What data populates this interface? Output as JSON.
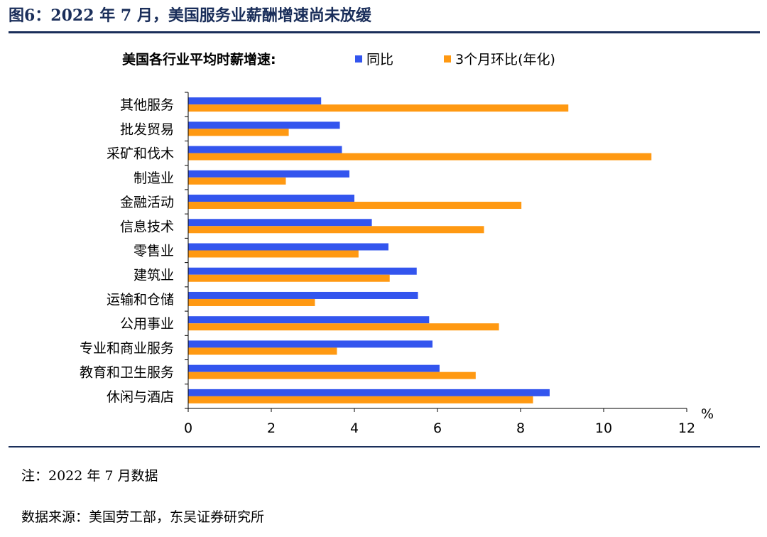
{
  "figure": {
    "title": "图6：2022 年 7 月，美国服务业薪酬增速尚未放缓",
    "note": "注：2022 年 7 月数据",
    "source": "数据来源：美国劳工部，东吴证券研究所"
  },
  "chart_data": {
    "type": "bar",
    "orientation": "horizontal",
    "title": "",
    "legend_title": "美国各行业平均时薪增速:",
    "legend_position": "top",
    "xlabel": "%",
    "ylabel": "",
    "xlim": [
      0,
      12
    ],
    "xticks": [
      0,
      2,
      4,
      6,
      8,
      10,
      12
    ],
    "grid": false,
    "categories": [
      "其他服务",
      "批发贸易",
      "采矿和伐木",
      "制造业",
      "金融活动",
      "信息技术",
      "零售业",
      "建筑业",
      "运输和仓储",
      "公用事业",
      "专业和商业服务",
      "教育和卫生服务",
      "休闲与酒店"
    ],
    "series": [
      {
        "name": "同比",
        "color": "#3355ee",
        "values": [
          3.2,
          3.65,
          3.7,
          3.88,
          4.0,
          4.42,
          4.82,
          5.5,
          5.53,
          5.8,
          5.88,
          6.05,
          8.7
        ]
      },
      {
        "name": "3个月环比(年化)",
        "color": "#ff9912",
        "values": [
          9.15,
          2.42,
          11.15,
          2.35,
          8.02,
          7.12,
          4.1,
          4.85,
          3.05,
          7.48,
          3.58,
          6.92,
          8.3
        ]
      }
    ]
  }
}
